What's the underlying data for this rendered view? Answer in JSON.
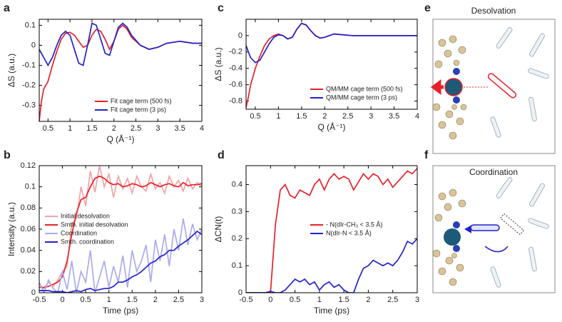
{
  "chart_data": [
    {
      "type": "line",
      "panel_label": "a",
      "xlabel": "Q (Å⁻¹)",
      "ylabel": "ΔS (a.u.)",
      "x": [
        0.3,
        0.35,
        0.4,
        0.5,
        0.6,
        0.7,
        0.8,
        0.9,
        1.0,
        1.1,
        1.2,
        1.3,
        1.4,
        1.5,
        1.6,
        1.7,
        1.8,
        1.9,
        2.0,
        2.1,
        2.2,
        2.3,
        2.4,
        2.6,
        2.8,
        3.0,
        3.2,
        3.5,
        3.8,
        4.0
      ],
      "xlim": [
        0.3,
        4
      ],
      "xticks": [
        0.5,
        1,
        1.5,
        2,
        2.5,
        3,
        3.5,
        4
      ],
      "ylim": [
        -0.38,
        0.13
      ],
      "yticks": [
        -0.3,
        -0.2,
        -0.1,
        0,
        0.1
      ],
      "legend": "lower right",
      "series": [
        {
          "name": "Fit cage term (500 fs)",
          "color": "#e8202a",
          "values": [
            -0.38,
            -0.28,
            -0.22,
            -0.18,
            -0.1,
            -0.03,
            0.03,
            0.06,
            0.065,
            0.05,
            0.02,
            -0.01,
            0.0,
            0.05,
            0.08,
            0.07,
            0.03,
            -0.02,
            0.02,
            0.08,
            0.1,
            0.08,
            0.04,
            0.0,
            -0.02,
            -0.01,
            0.01,
            0.02,
            0.01,
            0.01
          ]
        },
        {
          "name": "Fit cage term (3 ps)",
          "color": "#2222cc",
          "values": [
            -0.02,
            -0.04,
            -0.06,
            -0.1,
            -0.06,
            0.0,
            0.05,
            0.07,
            0.05,
            -0.02,
            -0.09,
            -0.1,
            0.0,
            0.11,
            0.1,
            0.03,
            -0.04,
            -0.05,
            0.02,
            0.09,
            0.11,
            0.09,
            0.05,
            0.0,
            -0.02,
            -0.01,
            0.01,
            0.02,
            0.01,
            0.01
          ]
        }
      ]
    },
    {
      "type": "line",
      "panel_label": "b",
      "xlabel": "Time (ps)",
      "ylabel": "Intensity (a.u.)",
      "x": [
        -0.5,
        -0.4,
        -0.3,
        -0.2,
        -0.1,
        0,
        0.1,
        0.2,
        0.3,
        0.4,
        0.5,
        0.6,
        0.7,
        0.8,
        0.9,
        1.0,
        1.1,
        1.2,
        1.3,
        1.4,
        1.5,
        1.6,
        1.7,
        1.8,
        1.9,
        2.0,
        2.1,
        2.2,
        2.3,
        2.4,
        2.5,
        2.6,
        2.7,
        2.8,
        2.9,
        3.0
      ],
      "xlim": [
        -0.5,
        3
      ],
      "xticks": [
        -0.5,
        0,
        0.5,
        1,
        1.5,
        2,
        2.5,
        3
      ],
      "ylim": [
        0,
        0.12
      ],
      "yticks": [
        0,
        0.02,
        0.04,
        0.06,
        0.08,
        0.1,
        0.12
      ],
      "legend": "center left",
      "series": [
        {
          "name": "Initial desolvation",
          "color": "#f4a3a3",
          "values": [
            0.008,
            0.004,
            0.01,
            0.006,
            0.012,
            0.02,
            0.025,
            0.065,
            0.07,
            0.1,
            0.082,
            0.115,
            0.095,
            0.12,
            0.1,
            0.112,
            0.09,
            0.11,
            0.098,
            0.108,
            0.094,
            0.11,
            0.1,
            0.096,
            0.112,
            0.098,
            0.104,
            0.094,
            0.11,
            0.1,
            0.106,
            0.096,
            0.108,
            0.098,
            0.104,
            0.1
          ]
        },
        {
          "name": "Smth. initial desolvation",
          "color": "#e8202a",
          "values": [
            0.005,
            0.005,
            0.006,
            0.008,
            0.01,
            0.015,
            0.03,
            0.055,
            0.075,
            0.088,
            0.09,
            0.1,
            0.108,
            0.11,
            0.108,
            0.104,
            0.102,
            0.103,
            0.1,
            0.101,
            0.103,
            0.102,
            0.1,
            0.101,
            0.104,
            0.102,
            0.1,
            0.102,
            0.103,
            0.101,
            0.1,
            0.104,
            0.101,
            0.102,
            0.102,
            0.103
          ]
        },
        {
          "name": "Coordination",
          "color": "#aaaaee",
          "values": [
            0.01,
            0.0,
            0.012,
            0.004,
            0.0,
            0.02,
            0.003,
            0.03,
            0.0,
            0.02,
            0.01,
            0.04,
            0.0,
            0.015,
            0.03,
            0.005,
            0.025,
            0.01,
            0.035,
            0.005,
            0.04,
            0.02,
            0.03,
            0.045,
            0.01,
            0.05,
            0.03,
            0.055,
            0.025,
            0.06,
            0.04,
            0.07,
            0.045,
            0.065,
            0.05,
            0.06
          ]
        },
        {
          "name": "Smth. coordination",
          "color": "#2222cc",
          "values": [
            0.002,
            0.002,
            0.002,
            0.001,
            0.001,
            0.001,
            0.0,
            0.001,
            0.002,
            0.001,
            0.003,
            0.004,
            0.002,
            0.003,
            0.004,
            0.004,
            0.006,
            0.01,
            0.01,
            0.012,
            0.015,
            0.017,
            0.02,
            0.024,
            0.028,
            0.03,
            0.034,
            0.036,
            0.04,
            0.04,
            0.044,
            0.047,
            0.05,
            0.054,
            0.058,
            0.055
          ]
        }
      ]
    },
    {
      "type": "line",
      "panel_label": "c",
      "xlabel": "Q (Å⁻¹)",
      "ylabel": "ΔS (a.u.)",
      "x": [
        0.3,
        0.35,
        0.4,
        0.5,
        0.6,
        0.7,
        0.8,
        0.9,
        1.0,
        1.1,
        1.2,
        1.3,
        1.4,
        1.5,
        1.6,
        1.7,
        1.8,
        1.9,
        2.0,
        2.2,
        2.4,
        2.6,
        3.0,
        3.5,
        4.0
      ],
      "xlim": [
        0.3,
        4
      ],
      "xticks": [
        0.5,
        1,
        1.5,
        2,
        2.5,
        3,
        3.5,
        4
      ],
      "ylim": [
        -0.9,
        0.2
      ],
      "yticks": [
        -0.8,
        -0.6,
        -0.4,
        -0.2,
        0
      ],
      "legend": "lower right",
      "series": [
        {
          "name": "QM/MM cage term (500 fs)",
          "color": "#e8202a",
          "values": [
            -0.88,
            -0.75,
            -0.6,
            -0.4,
            -0.25,
            -0.12,
            -0.04,
            0.0,
            0.02,
            0.0,
            -0.04,
            -0.02,
            0.08,
            0.15,
            0.13,
            0.06,
            0.0,
            -0.03,
            -0.02,
            0.02,
            0.01,
            0.0,
            0.0,
            0.0,
            0.0
          ]
        },
        {
          "name": "QM/MM cage term (3 ps)",
          "color": "#2222cc",
          "values": [
            -0.12,
            -0.2,
            -0.27,
            -0.33,
            -0.3,
            -0.2,
            -0.1,
            -0.02,
            0.01,
            0.0,
            -0.04,
            -0.02,
            0.08,
            0.15,
            0.13,
            0.06,
            0.0,
            -0.03,
            -0.02,
            0.02,
            0.01,
            0.0,
            0.0,
            0.0,
            0.0
          ]
        }
      ]
    },
    {
      "type": "line",
      "panel_label": "d",
      "xlabel": "Time (ps)",
      "ylabel": "ΔCN(t)",
      "x": [
        -0.5,
        -0.4,
        -0.3,
        -0.2,
        -0.1,
        0,
        0.1,
        0.2,
        0.3,
        0.4,
        0.5,
        0.6,
        0.7,
        0.8,
        0.9,
        1.0,
        1.1,
        1.2,
        1.3,
        1.4,
        1.5,
        1.6,
        1.7,
        1.8,
        1.9,
        2.0,
        2.1,
        2.2,
        2.3,
        2.4,
        2.5,
        2.6,
        2.7,
        2.8,
        2.9,
        3.0
      ],
      "xlim": [
        -0.5,
        3
      ],
      "xticks": [
        -0.5,
        0,
        0.5,
        1,
        1.5,
        2,
        2.5,
        3
      ],
      "ylim": [
        0,
        0.47
      ],
      "yticks": [
        0,
        0.1,
        0.2,
        0.3,
        0.4
      ],
      "legend": "center right",
      "series": [
        {
          "name": "- N(dIr-CH₃ < 3.5 Å)",
          "color": "#e8202a",
          "values": [
            0,
            0,
            0,
            0,
            0,
            0,
            0.25,
            0.38,
            0.4,
            0.36,
            0.35,
            0.38,
            0.37,
            0.36,
            0.4,
            0.42,
            0.38,
            0.42,
            0.44,
            0.42,
            0.43,
            0.42,
            0.38,
            0.41,
            0.44,
            0.42,
            0.44,
            0.43,
            0.4,
            0.42,
            0.39,
            0.41,
            0.43,
            0.45,
            0.44,
            0.46
          ]
        },
        {
          "name": "N(dIr-N < 3.5 Å)",
          "color": "#2222cc",
          "values": [
            0,
            0,
            0,
            0,
            0,
            0.005,
            0,
            0,
            0.01,
            0.03,
            0.05,
            0.04,
            0.05,
            0.03,
            0.04,
            0.01,
            0.03,
            0.04,
            0.02,
            0.03,
            0.01,
            0,
            0,
            0.05,
            0.09,
            0.1,
            0.12,
            0.11,
            0.1,
            0.11,
            0.1,
            0.12,
            0.15,
            0.19,
            0.18,
            0.2
          ]
        }
      ]
    }
  ],
  "panels": [
    {
      "label": "e",
      "title": "Desolvation",
      "color": "#e8202a"
    },
    {
      "label": "f",
      "title": "Coordination",
      "color": "#2222cc"
    }
  ]
}
